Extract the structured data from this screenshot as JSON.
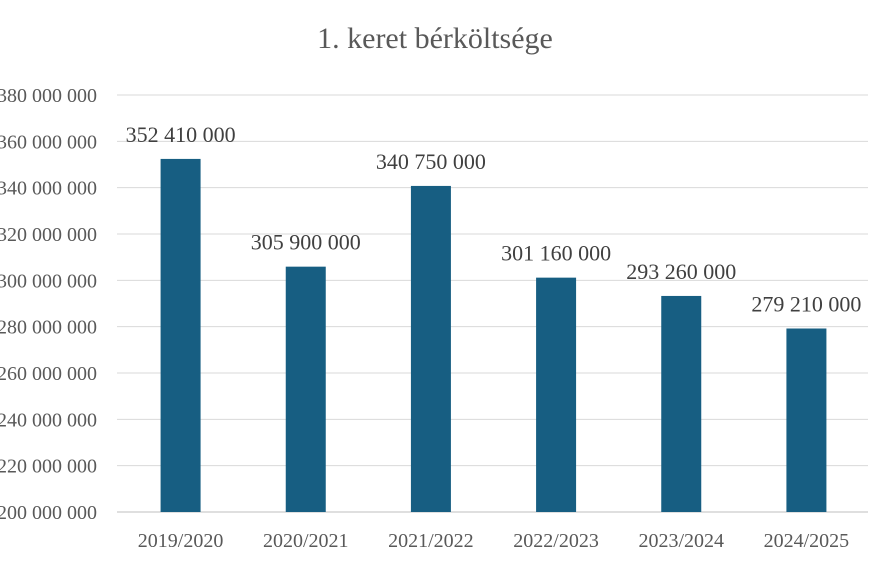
{
  "chart_data": {
    "type": "bar",
    "title": "1. keret bérköltsége",
    "categories": [
      "2019/2020",
      "2020/2021",
      "2021/2022",
      "2022/2023",
      "2023/2024",
      "2024/2025"
    ],
    "values": [
      352410000,
      305900000,
      340750000,
      301160000,
      293260000,
      279210000
    ],
    "value_labels": [
      "352 410 000",
      "305 900 000",
      "340 750 000",
      "301 160 000",
      "293 260 000",
      "279 210 000"
    ],
    "ylim": [
      200000000,
      380000000
    ],
    "ytick_values": [
      200000000,
      220000000,
      240000000,
      260000000,
      280000000,
      300000000,
      320000000,
      340000000,
      360000000,
      380000000
    ],
    "ytick_labels": [
      "200 000 000",
      "220 000 000",
      "240 000 000",
      "260 000 000",
      "280 000 000",
      "300 000 000",
      "320 000 000",
      "340 000 000",
      "360 000 000",
      "380 000 000"
    ],
    "grid": true,
    "colors": {
      "bar": "#175E82",
      "grid": "#D9D9D9",
      "axis": "#BFBFBF"
    }
  }
}
